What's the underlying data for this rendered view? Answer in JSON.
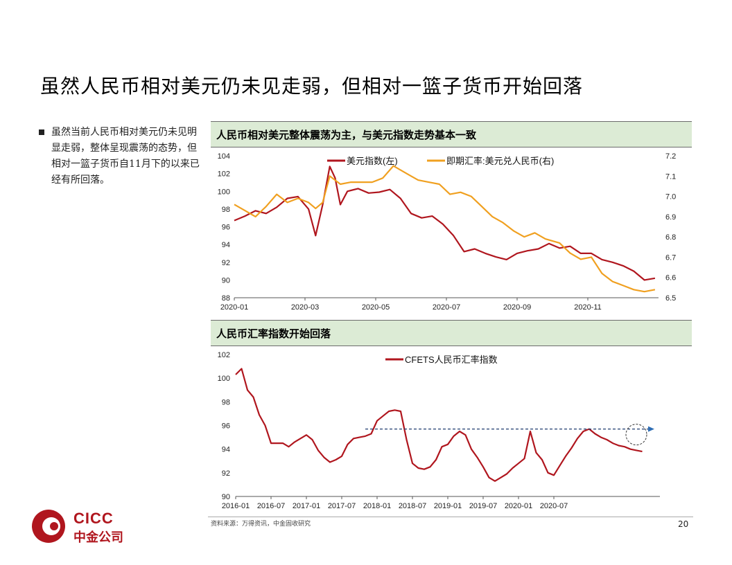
{
  "slide": {
    "title": "虽然人民币相对美元仍未见走弱，但相对一篮子货币开始回落",
    "bullet": "虽然当前人民币相对美元仍未见明显走弱，整体呈现震荡的态势，但相对一篮子货币自11月下的以来已经有所回落。",
    "source": "资料来源：万得资讯，中金固收研究",
    "page_number": "20",
    "logo_en": "CICC",
    "logo_cn": "中金公司"
  },
  "colors": {
    "usd_index": "#b0161e",
    "usdcny": "#f0a020",
    "cfets": "#b0161e",
    "header_bg": "#dcebd5",
    "arrow": "#1f3a6e"
  },
  "chart_data": [
    {
      "type": "line",
      "panel_title": "人民币相对美元整体震荡为主，与美元指数走势基本一致",
      "x_ticks": [
        "2020-01",
        "2020-03",
        "2020-05",
        "2020-07",
        "2020-09",
        "2020-11"
      ],
      "y_left": {
        "ticks": [
          "104",
          "102",
          "100",
          "98",
          "96",
          "94",
          "92",
          "90",
          "88"
        ],
        "range": [
          88,
          104
        ]
      },
      "y_right": {
        "ticks": [
          "7.2",
          "7.1",
          "7.0",
          "6.9",
          "6.8",
          "6.7",
          "6.6",
          "6.5"
        ],
        "range": [
          6.5,
          7.2
        ]
      },
      "series": [
        {
          "name": "美元指数(左)",
          "axis": "left",
          "x_months": [
            0,
            0.3,
            0.6,
            0.9,
            1.2,
            1.5,
            1.8,
            2.1,
            2.3,
            2.5,
            2.7,
            2.85,
            3.0,
            3.2,
            3.5,
            3.8,
            4.1,
            4.4,
            4.7,
            5.0,
            5.3,
            5.6,
            5.9,
            6.2,
            6.5,
            6.8,
            7.1,
            7.4,
            7.7,
            8.0,
            8.3,
            8.6,
            8.9,
            9.2,
            9.5,
            9.8,
            10.1,
            10.4,
            10.7,
            11.0,
            11.3,
            11.6,
            11.9
          ],
          "values": [
            96.7,
            97.2,
            97.8,
            97.5,
            98.2,
            99.2,
            99.4,
            98.0,
            95.0,
            98.5,
            102.8,
            101.5,
            98.5,
            100.0,
            100.3,
            99.8,
            99.9,
            100.2,
            99.2,
            97.5,
            97.0,
            97.2,
            96.3,
            95.0,
            93.2,
            93.5,
            93.0,
            92.6,
            92.3,
            93.0,
            93.3,
            93.5,
            94.1,
            93.6,
            93.8,
            93.0,
            93.0,
            92.3,
            92.0,
            91.6,
            91.0,
            90.0,
            90.2
          ]
        },
        {
          "name": "即期汇率:美元兑人民币(右)",
          "axis": "right",
          "x_months": [
            0,
            0.3,
            0.6,
            0.9,
            1.2,
            1.5,
            1.8,
            2.1,
            2.3,
            2.5,
            2.7,
            2.85,
            3.0,
            3.3,
            3.6,
            3.9,
            4.2,
            4.5,
            4.8,
            5.0,
            5.2,
            5.5,
            5.8,
            6.1,
            6.4,
            6.7,
            7.0,
            7.3,
            7.6,
            7.9,
            8.2,
            8.5,
            8.8,
            9.2,
            9.5,
            9.8,
            10.1,
            10.4,
            10.7,
            11.0,
            11.3,
            11.6,
            11.9
          ],
          "values": [
            6.96,
            6.93,
            6.9,
            6.95,
            7.01,
            6.97,
            6.99,
            6.97,
            6.94,
            6.97,
            7.1,
            7.08,
            7.06,
            7.07,
            7.07,
            7.07,
            7.09,
            7.15,
            7.12,
            7.1,
            7.08,
            7.07,
            7.06,
            7.01,
            7.02,
            7.0,
            6.95,
            6.9,
            6.87,
            6.83,
            6.8,
            6.82,
            6.79,
            6.77,
            6.72,
            6.69,
            6.7,
            6.62,
            6.58,
            6.56,
            6.54,
            6.53,
            6.54
          ]
        }
      ]
    },
    {
      "type": "line",
      "panel_title": "人民币汇率指数开始回落",
      "x_ticks": [
        "2016-01",
        "2016-07",
        "2017-01",
        "2017-07",
        "2018-01",
        "2018-07",
        "2019-01",
        "2019-07",
        "2020-01",
        "2020-07"
      ],
      "y_left": {
        "ticks": [
          "102",
          "100",
          "98",
          "96",
          "94",
          "92",
          "90"
        ],
        "range": [
          90,
          102
        ]
      },
      "reference_level": 95.7,
      "series": [
        {
          "name": "CFETS人民币汇率指数",
          "axis": "left",
          "x_months": [
            0,
            1,
            2,
            3,
            4,
            5,
            6,
            7,
            8,
            9,
            10,
            11,
            12,
            13,
            14,
            15,
            16,
            17,
            18,
            19,
            20,
            21,
            22,
            23,
            24,
            25,
            26,
            27,
            28,
            29,
            30,
            31,
            32,
            33,
            34,
            35,
            36,
            37,
            38,
            39,
            40,
            41,
            42,
            43,
            44,
            45,
            46,
            47,
            48,
            49,
            50,
            51,
            52,
            53,
            54,
            55,
            56,
            57,
            58,
            59,
            60,
            61,
            62,
            63,
            64,
            65,
            66,
            67,
            68,
            69
          ],
          "values": [
            100.3,
            100.8,
            99.0,
            98.4,
            96.9,
            96.0,
            94.5,
            94.5,
            94.5,
            94.2,
            94.6,
            94.9,
            95.2,
            94.8,
            93.9,
            93.3,
            92.9,
            93.1,
            93.4,
            94.4,
            94.9,
            95.0,
            95.1,
            95.3,
            96.4,
            96.8,
            97.2,
            97.3,
            97.2,
            94.8,
            92.8,
            92.4,
            92.3,
            92.5,
            93.1,
            94.2,
            94.4,
            95.1,
            95.5,
            95.2,
            94.0,
            93.3,
            92.5,
            91.6,
            91.3,
            91.6,
            91.9,
            92.4,
            92.8,
            93.2,
            95.5,
            93.7,
            93.1,
            92.0,
            91.8,
            92.6,
            93.4,
            94.1,
            94.9,
            95.5,
            95.7,
            95.3,
            95.0,
            94.8,
            94.5,
            94.3,
            94.2,
            94.0,
            93.9,
            93.8
          ]
        }
      ]
    }
  ]
}
